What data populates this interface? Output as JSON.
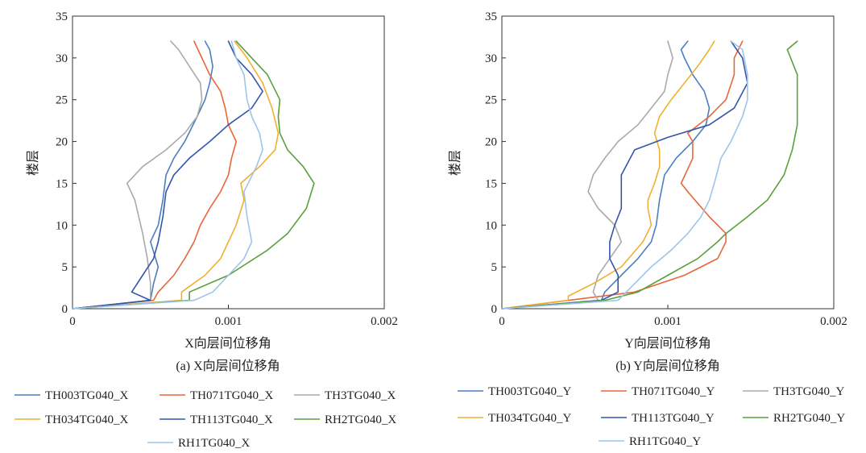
{
  "chart_data": [
    {
      "type": "line",
      "caption": "(a) X向层间位移角",
      "xlabel": "X向层间位移角",
      "ylabel": "楼层",
      "xlim": [
        0,
        0.002
      ],
      "ylim": [
        0,
        35
      ],
      "xticks": [
        "0",
        "0.001",
        "0.002"
      ],
      "yticks": [
        "0",
        "5",
        "10",
        "15",
        "20",
        "25",
        "30",
        "35"
      ],
      "grid": false,
      "legend_position": "bottom",
      "series": [
        {
          "name": "TH003TG040_X",
          "color": "#4a7fc1",
          "points": [
            [
              0,
              0
            ],
            [
              0.0005,
              1
            ],
            [
              0.00052,
              3
            ],
            [
              0.00055,
              5
            ],
            [
              0.0005,
              8
            ],
            [
              0.00055,
              10
            ],
            [
              0.00058,
              13
            ],
            [
              0.0006,
              16
            ],
            [
              0.00065,
              18
            ],
            [
              0.00072,
              20
            ],
            [
              0.0008,
              23
            ],
            [
              0.00085,
              25
            ],
            [
              0.00088,
              27
            ],
            [
              0.0009,
              29
            ],
            [
              0.00088,
              31
            ],
            [
              0.00085,
              32
            ]
          ]
        },
        {
          "name": "TH071TG040_X",
          "color": "#e8673a",
          "points": [
            [
              0,
              0
            ],
            [
              0.00052,
              1
            ],
            [
              0.00055,
              2
            ],
            [
              0.00065,
              4
            ],
            [
              0.00072,
              6
            ],
            [
              0.00078,
              8
            ],
            [
              0.00082,
              10
            ],
            [
              0.00088,
              12
            ],
            [
              0.00095,
              14
            ],
            [
              0.001,
              16
            ],
            [
              0.00102,
              18
            ],
            [
              0.00105,
              20
            ],
            [
              0.001,
              22
            ],
            [
              0.00098,
              24
            ],
            [
              0.00095,
              26
            ],
            [
              0.00088,
              28
            ],
            [
              0.00083,
              30
            ],
            [
              0.00078,
              32
            ]
          ]
        },
        {
          "name": "TH3TG040_X",
          "color": "#aaaaaa",
          "points": [
            [
              0,
              0
            ],
            [
              0.0005,
              1
            ],
            [
              0.0005,
              3
            ],
            [
              0.00048,
              6
            ],
            [
              0.00045,
              9
            ],
            [
              0.0004,
              13
            ],
            [
              0.00035,
              15
            ],
            [
              0.00045,
              17
            ],
            [
              0.0006,
              19
            ],
            [
              0.00072,
              21
            ],
            [
              0.0008,
              23
            ],
            [
              0.00083,
              25
            ],
            [
              0.00082,
              27
            ],
            [
              0.00075,
              29
            ],
            [
              0.00068,
              31
            ],
            [
              0.00063,
              32
            ]
          ]
        },
        {
          "name": "TH034TG040_X",
          "color": "#f0b030",
          "points": [
            [
              0,
              0
            ],
            [
              0.0007,
              1
            ],
            [
              0.0007,
              2
            ],
            [
              0.00085,
              4
            ],
            [
              0.00095,
              6
            ],
            [
              0.001,
              8
            ],
            [
              0.00105,
              10
            ],
            [
              0.0011,
              13
            ],
            [
              0.00108,
              15
            ],
            [
              0.0012,
              17
            ],
            [
              0.0013,
              19
            ],
            [
              0.00132,
              21
            ],
            [
              0.00128,
              24
            ],
            [
              0.00122,
              27
            ],
            [
              0.00112,
              30
            ],
            [
              0.00104,
              32
            ]
          ]
        },
        {
          "name": "TH113TG040_X",
          "color": "#3355aa",
          "points": [
            [
              0,
              0
            ],
            [
              0.0005,
              1
            ],
            [
              0.00038,
              2
            ],
            [
              0.00045,
              4
            ],
            [
              0.00052,
              6
            ],
            [
              0.00055,
              8
            ],
            [
              0.00058,
              11
            ],
            [
              0.0006,
              14
            ],
            [
              0.00065,
              16
            ],
            [
              0.00075,
              18
            ],
            [
              0.00088,
              20
            ],
            [
              0.001,
              22
            ],
            [
              0.00115,
              24
            ],
            [
              0.00122,
              26
            ],
            [
              0.00115,
              28
            ],
            [
              0.00105,
              30
            ],
            [
              0.001,
              32
            ]
          ]
        },
        {
          "name": "RH2TG040_X",
          "color": "#5aa03c",
          "points": [
            [
              0,
              0
            ],
            [
              0.00075,
              1
            ],
            [
              0.00075,
              2
            ],
            [
              0.001,
              4
            ],
            [
              0.00125,
              7
            ],
            [
              0.00138,
              9
            ],
            [
              0.0015,
              12
            ],
            [
              0.00155,
              15
            ],
            [
              0.00148,
              17
            ],
            [
              0.00138,
              19
            ],
            [
              0.00133,
              21
            ],
            [
              0.00132,
              23
            ],
            [
              0.00133,
              25
            ],
            [
              0.00125,
              28
            ],
            [
              0.00115,
              30
            ],
            [
              0.00105,
              32
            ]
          ]
        },
        {
          "name": "RH1TG040_X",
          "color": "#9ec5e8",
          "points": [
            [
              0,
              0
            ],
            [
              0.00078,
              1
            ],
            [
              0.0009,
              2
            ],
            [
              0.001,
              4
            ],
            [
              0.0011,
              6
            ],
            [
              0.00115,
              8
            ],
            [
              0.00112,
              11
            ],
            [
              0.0011,
              14
            ],
            [
              0.00118,
              17
            ],
            [
              0.00122,
              19
            ],
            [
              0.0012,
              21
            ],
            [
              0.00115,
              23
            ],
            [
              0.00112,
              25
            ],
            [
              0.0011,
              28
            ],
            [
              0.00105,
              30
            ],
            [
              0.00102,
              32
            ]
          ]
        }
      ]
    },
    {
      "type": "line",
      "caption": "(b) Y向层间位移角",
      "xlabel": "Y向层间位移角",
      "ylabel": "楼层",
      "xlim": [
        0,
        0.002
      ],
      "ylim": [
        0,
        35
      ],
      "xticks": [
        "0",
        "0.001",
        "0.002"
      ],
      "yticks": [
        "0",
        "5",
        "10",
        "15",
        "20",
        "25",
        "30",
        "35"
      ],
      "grid": false,
      "legend_position": "bottom",
      "series": [
        {
          "name": "TH003TG040_Y",
          "color": "#4a7fc1",
          "points": [
            [
              0,
              0
            ],
            [
              0.0006,
              1
            ],
            [
              0.00062,
              2
            ],
            [
              0.00072,
              4
            ],
            [
              0.00082,
              6
            ],
            [
              0.0009,
              8
            ],
            [
              0.00093,
              10
            ],
            [
              0.00095,
              13
            ],
            [
              0.00098,
              16
            ],
            [
              0.00105,
              18
            ],
            [
              0.00115,
              20
            ],
            [
              0.00123,
              22
            ],
            [
              0.00125,
              24
            ],
            [
              0.00122,
              26
            ],
            [
              0.00115,
              28
            ],
            [
              0.0011,
              30
            ],
            [
              0.00108,
              31
            ],
            [
              0.00112,
              32
            ]
          ]
        },
        {
          "name": "TH071TG040_Y",
          "color": "#e8673a",
          "points": [
            [
              0,
              0
            ],
            [
              0.0008,
              2
            ],
            [
              0.0011,
              4
            ],
            [
              0.0013,
              6
            ],
            [
              0.00135,
              8
            ],
            [
              0.00135,
              9
            ],
            [
              0.00125,
              11
            ],
            [
              0.00112,
              14
            ],
            [
              0.00108,
              15
            ],
            [
              0.00115,
              18
            ],
            [
              0.00115,
              20
            ],
            [
              0.00112,
              21
            ],
            [
              0.00125,
              23
            ],
            [
              0.00135,
              25
            ],
            [
              0.0014,
              28
            ],
            [
              0.0014,
              30
            ],
            [
              0.00145,
              32
            ]
          ]
        },
        {
          "name": "TH3TG040_Y",
          "color": "#aaaaaa",
          "points": [
            [
              0,
              0
            ],
            [
              0.00058,
              1
            ],
            [
              0.00055,
              2
            ],
            [
              0.00058,
              4
            ],
            [
              0.00065,
              6
            ],
            [
              0.00072,
              8
            ],
            [
              0.00068,
              10
            ],
            [
              0.00058,
              12
            ],
            [
              0.00052,
              14
            ],
            [
              0.00055,
              16
            ],
            [
              0.00062,
              18
            ],
            [
              0.0007,
              20
            ],
            [
              0.00082,
              22
            ],
            [
              0.0009,
              24
            ],
            [
              0.00098,
              26
            ],
            [
              0.001,
              28
            ],
            [
              0.00103,
              30
            ],
            [
              0.001,
              32
            ]
          ]
        },
        {
          "name": "TH034TG040_Y",
          "color": "#f0b030",
          "points": [
            [
              0,
              0
            ],
            [
              0.0004,
              1
            ],
            [
              0.0004,
              1.5
            ],
            [
              0.00055,
              3
            ],
            [
              0.00072,
              5
            ],
            [
              0.00085,
              8
            ],
            [
              0.0009,
              10
            ],
            [
              0.00088,
              12
            ],
            [
              0.00088,
              13
            ],
            [
              0.00092,
              15
            ],
            [
              0.00095,
              17
            ],
            [
              0.00095,
              19
            ],
            [
              0.00092,
              21
            ],
            [
              0.00095,
              23
            ],
            [
              0.00102,
              25
            ],
            [
              0.0011,
              27
            ],
            [
              0.00118,
              29
            ],
            [
              0.00125,
              31
            ],
            [
              0.00128,
              32
            ]
          ]
        },
        {
          "name": "TH113TG040_Y",
          "color": "#3355aa",
          "points": [
            [
              0,
              0
            ],
            [
              0.0006,
              1
            ],
            [
              0.0007,
              2
            ],
            [
              0.0007,
              4
            ],
            [
              0.00065,
              6
            ],
            [
              0.00065,
              8
            ],
            [
              0.00068,
              10
            ],
            [
              0.00072,
              12
            ],
            [
              0.00072,
              14
            ],
            [
              0.00072,
              16
            ],
            [
              0.0008,
              19
            ],
            [
              0.001,
              20.5
            ],
            [
              0.00125,
              22
            ],
            [
              0.0014,
              24
            ],
            [
              0.00148,
              27
            ],
            [
              0.00145,
              30
            ],
            [
              0.00138,
              32
            ]
          ]
        },
        {
          "name": "RH2TG040_Y",
          "color": "#5aa03c",
          "points": [
            [
              0,
              0
            ],
            [
              0.00062,
              1
            ],
            [
              0.00082,
              2
            ],
            [
              0.001,
              4
            ],
            [
              0.00118,
              6
            ],
            [
              0.0013,
              8
            ],
            [
              0.00135,
              9
            ],
            [
              0.00148,
              11
            ],
            [
              0.0016,
              13
            ],
            [
              0.0017,
              16
            ],
            [
              0.00175,
              19
            ],
            [
              0.00178,
              22
            ],
            [
              0.00178,
              25
            ],
            [
              0.00178,
              28
            ],
            [
              0.00172,
              31
            ],
            [
              0.00178,
              32
            ]
          ]
        },
        {
          "name": "RH1TG040_Y",
          "color": "#9ec5e8",
          "points": [
            [
              0,
              0
            ],
            [
              0.0007,
              1
            ],
            [
              0.0008,
              3
            ],
            [
              0.0009,
              5
            ],
            [
              0.00102,
              7
            ],
            [
              0.00112,
              9
            ],
            [
              0.0012,
              11
            ],
            [
              0.00125,
              13
            ],
            [
              0.00128,
              15
            ],
            [
              0.00132,
              18
            ],
            [
              0.00138,
              20
            ],
            [
              0.00145,
              23
            ],
            [
              0.00148,
              25
            ],
            [
              0.00148,
              28
            ],
            [
              0.00145,
              31
            ],
            [
              0.00138,
              32
            ]
          ]
        }
      ]
    }
  ]
}
